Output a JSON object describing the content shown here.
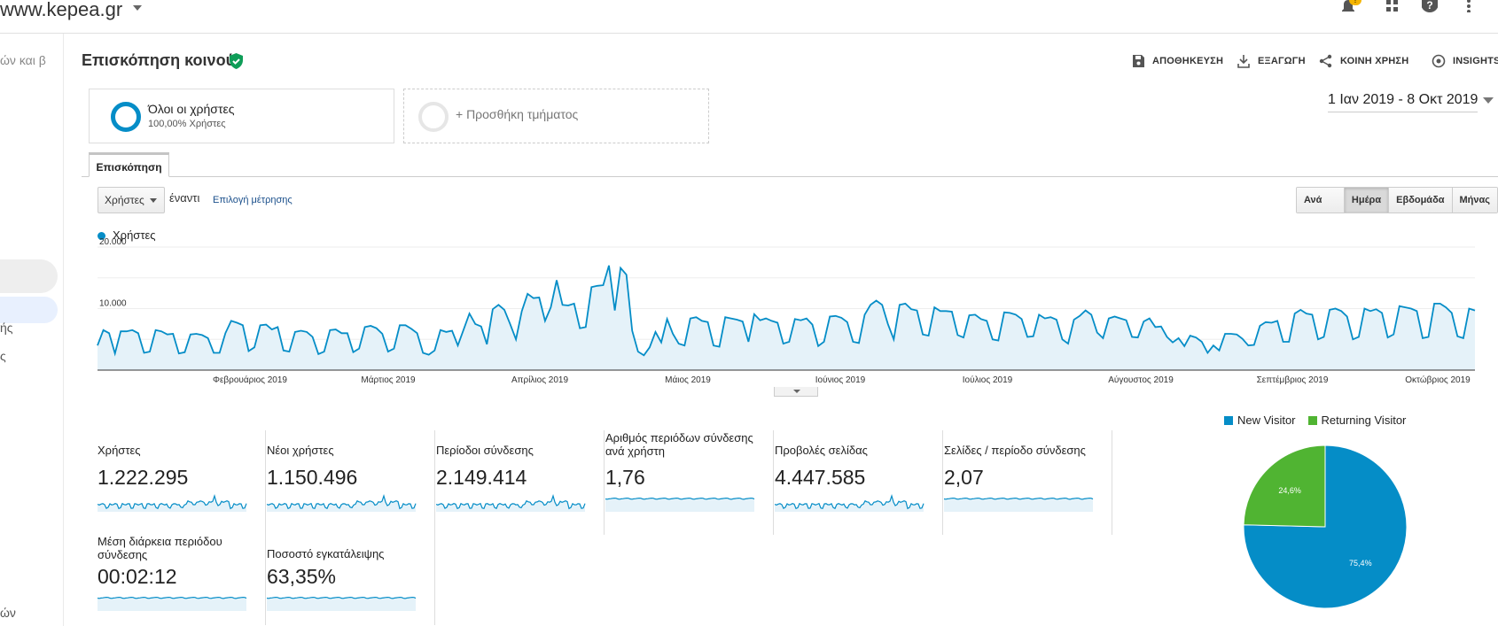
{
  "header": {
    "site": "www.kepea.gr",
    "bell_badge": "!"
  },
  "sidebar": {
    "frag1": "ών και β",
    "frag2": "ής",
    "frag3": "ς",
    "frag4": "ών"
  },
  "page": {
    "title": "Επισκόπηση κοινού",
    "actions": [
      "ΑΠΟΘΗΚΕΥΣΗ",
      "ΕΞΑΓΩΓΗ",
      "ΚΟΙΝΗ ΧΡΗΣΗ",
      "INSIGHTS"
    ]
  },
  "segments": {
    "all_name": "Όλοι οι χρήστες",
    "all_sub": "100,00% Χρήστες",
    "add_label": "+ Προσθήκη τμήματος"
  },
  "date_range": "1 Ιαν 2019 - 8 Οκτ 2019",
  "tabs": [
    "Επισκόπηση"
  ],
  "controls": {
    "metric_select": "Χρήστες",
    "versus": "έναντι",
    "select_metric": "Επιλογή μέτρησης",
    "granularity": [
      "Ανά ώρα",
      "Ημέρα",
      "Εβδομάδα",
      "Μήνας"
    ],
    "active_granularity": "Ημέρα"
  },
  "metrics": [
    {
      "label": "Χρήστες",
      "value": "1.222.295"
    },
    {
      "label": "Νέοι χρήστες",
      "value": "1.150.496"
    },
    {
      "label": "Περίοδοι σύνδεσης",
      "value": "2.149.414"
    },
    {
      "label": "Αριθμός περιόδων σύνδεσης ανά χρήστη",
      "value": "1,76"
    },
    {
      "label": "Προβολές σελίδας",
      "value": "4.447.585"
    },
    {
      "label": "Σελίδες / περίοδο σύνδεσης",
      "value": "2,07"
    },
    {
      "label": "Μέση διάρκεια περιόδου σύνδεσης",
      "value": "00:02:12"
    },
    {
      "label": "Ποσοστό εγκατάλειψης",
      "value": "63,35%"
    }
  ],
  "colors": {
    "primary": "#058dc7",
    "secondary": "#50b432",
    "fill": "#e5f2f9"
  },
  "chart_data": [
    {
      "type": "area",
      "series": [
        {
          "name": "Χρήστες",
          "values": [
            4000,
            6500,
            6000,
            2700,
            6300,
            6300,
            6500,
            6000,
            2800,
            3000,
            6500,
            6300,
            5800,
            5900,
            2700,
            2900,
            5800,
            5900,
            5700,
            5200,
            2800,
            2800,
            6000,
            8000,
            7700,
            7300,
            3100,
            3700,
            7300,
            7400,
            6600,
            7000,
            3200,
            3000,
            6200,
            6400,
            6200,
            5400,
            2600,
            3000,
            6500,
            6600,
            6000,
            6000,
            2900,
            3500,
            7000,
            7200,
            6800,
            5900,
            3000,
            3500,
            7300,
            7300,
            6700,
            6000,
            2800,
            2500,
            3200,
            6500,
            6200,
            6400,
            4000,
            6600,
            9200,
            7500,
            7100,
            4200,
            9900,
            10600,
            9800,
            7500,
            5000,
            9600,
            12400,
            11700,
            11800,
            8000,
            10200,
            14600,
            10600,
            10500,
            10800,
            6800,
            7000,
            13500,
            13700,
            13800,
            17000,
            9700,
            16600,
            15500,
            6400,
            3000,
            2400,
            3700,
            6200,
            4500,
            8300,
            5900,
            4300,
            4000,
            8400,
            8600,
            8000,
            7800,
            4000,
            3800,
            8600,
            8400,
            8200,
            7900,
            4600,
            9100,
            8100,
            8400,
            8000,
            7700,
            4300,
            4600,
            8300,
            8100,
            8400,
            7400,
            3900,
            4600,
            8700,
            8800,
            8500,
            7800,
            4600,
            4400,
            9000,
            10600,
            11300,
            10600,
            7500,
            5000,
            10600,
            10800,
            9900,
            9700,
            5800,
            5600,
            10200,
            9600,
            9600,
            9500,
            5700,
            5300,
            8900,
            9000,
            8300,
            8000,
            5000,
            4800,
            9400,
            9300,
            9000,
            8300,
            5400,
            5500,
            9000,
            8400,
            8600,
            8200,
            5000,
            4300,
            8200,
            8800,
            9700,
            9000,
            6100,
            5200,
            8400,
            8700,
            8400,
            8100,
            5400,
            5300,
            7900,
            8400,
            7000,
            7100,
            5400,
            4500,
            5200,
            3900,
            5600,
            5300,
            4600,
            2800,
            4000,
            3200,
            5900,
            5900,
            5800,
            5100,
            4000,
            4100,
            7200,
            7800,
            7700,
            8000,
            4600,
            4600,
            9200,
            9800,
            9200,
            9000,
            5000,
            5400,
            9800,
            10000,
            9600,
            8700,
            5000,
            5400,
            10000,
            9600,
            9900,
            9300,
            5300,
            5800,
            10400,
            10200,
            10000,
            9600,
            5200,
            5400,
            10800,
            10800,
            10200,
            9300,
            5500,
            5200,
            10000,
            9700
          ]
        }
      ],
      "x_tick_labels": [
        "Φεβρουάριος 2019",
        "Μάρτιος 2019",
        "Απρίλιος 2019",
        "Μάιος 2019",
        "Ιούνιος 2019",
        "Ιούλιος 2019",
        "Αύγουστος 2019",
        "Σεπτέμβριος 2019",
        "Οκτώβριος 2019"
      ],
      "y_tick_labels": [
        "20.000",
        "10.000"
      ],
      "ylim": [
        0,
        20000
      ]
    },
    {
      "type": "pie",
      "categories": [
        "New Visitor",
        "Returning Visitor"
      ],
      "values": [
        75.4,
        24.6
      ],
      "data_labels": [
        "75,4%",
        "24,6%"
      ],
      "legend": "top"
    }
  ]
}
